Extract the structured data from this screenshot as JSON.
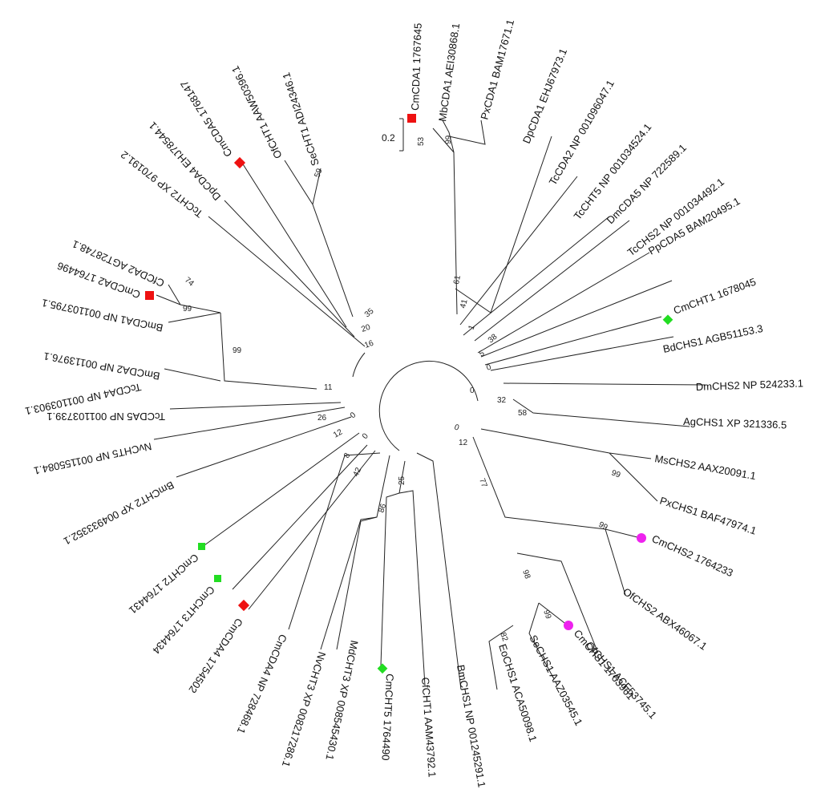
{
  "scale_bar": {
    "label": "0.2"
  },
  "colors": {
    "red": "#ee1111",
    "green": "#22dd22",
    "magenta": "#ee22ee",
    "line": "#222222"
  },
  "leaves": [
    {
      "label": "CmCDA1 1767645",
      "marker": "red-square"
    },
    {
      "label": "MbCDA1 AEI30868.1",
      "marker": ""
    },
    {
      "label": "PxCDA1 BAM17671.1",
      "marker": ""
    },
    {
      "label": "DpCDA1 EHJ67973.1",
      "marker": ""
    },
    {
      "label": "TcCDA2 NP 001096047.1",
      "marker": ""
    },
    {
      "label": "TcCHT5 NP 001034524.1",
      "marker": ""
    },
    {
      "label": "DmCDA5 NP 722589.1",
      "marker": ""
    },
    {
      "label": "TcCHS2 NP 001034492.1",
      "marker": ""
    },
    {
      "label": "PpCDA5 BAM20495.1",
      "marker": ""
    },
    {
      "label": "CmCHT1 1678045",
      "marker": "green-diamond"
    },
    {
      "label": "BdCHS1 AGB51153.3",
      "marker": ""
    },
    {
      "label": "DmCHS2 NP 524233.1",
      "marker": ""
    },
    {
      "label": "AgCHS1 XP 321336.5",
      "marker": ""
    },
    {
      "label": "MsCHS2 AAX20091.1",
      "marker": ""
    },
    {
      "label": "PxCHS1 BAF47974.1",
      "marker": ""
    },
    {
      "label": "CmCHS2 1764233",
      "marker": "magenta-circle"
    },
    {
      "label": "OfCHS2 ABX46067.1",
      "marker": ""
    },
    {
      "label": "OfCHS1 ACF53745.1",
      "marker": ""
    },
    {
      "label": "CmCHS1 1763961",
      "marker": "magenta-circle"
    },
    {
      "label": "SeCHS1 AAZ03545.1",
      "marker": ""
    },
    {
      "label": "EoCHS1 ACA50098.1",
      "marker": ""
    },
    {
      "label": "BmCHS1 NP 001245291.1",
      "marker": ""
    },
    {
      "label": "CfCHT1 AAM43792.1",
      "marker": ""
    },
    {
      "label": "CmCHT5 1764490",
      "marker": "green-diamond"
    },
    {
      "label": "MdCHT3 XP 008545430.1",
      "marker": ""
    },
    {
      "label": "NvCHT3 XP 008217286.1",
      "marker": ""
    },
    {
      "label": "CmCDA4 NP 728468.1",
      "marker": ""
    },
    {
      "label": "CmCDA4 1754502",
      "marker": "red-diamond"
    },
    {
      "label": "CmCHT3 1764434",
      "marker": "green-square"
    },
    {
      "label": "CmCHT2 1764431",
      "marker": "green-square"
    },
    {
      "label": "BmCHT2 XP 004933352.1",
      "marker": ""
    },
    {
      "label": "NvCHT5 NP 001155084.1",
      "marker": ""
    },
    {
      "label": "TcCDA4 NP 001103903.1",
      "marker": ""
    },
    {
      "label": "TcCDA5 NP 001103739.1",
      "marker": ""
    },
    {
      "label": "BmCDA2 NP 00113976.1",
      "marker": ""
    },
    {
      "label": "BmCDA1 NP 001103795.1",
      "marker": ""
    },
    {
      "label": "CmCDA2 1764496",
      "marker": "red-square"
    },
    {
      "label": "CfCDA2 AGT28748.1",
      "marker": ""
    },
    {
      "label": "TcCHT2 XP 970191.2",
      "marker": ""
    },
    {
      "label": "DpCDA4 EHJ78544.1",
      "marker": ""
    },
    {
      "label": "CmCDA5 1768147",
      "marker": "red-diamond"
    },
    {
      "label": "OfCHT1 AAW50396.1",
      "marker": ""
    },
    {
      "label": "SeCHT1 ADI24346.1",
      "marker": ""
    }
  ],
  "bootstrap_values": [
    "53",
    "99",
    "61",
    "41",
    "1",
    "38",
    "5",
    "0",
    "0",
    "32",
    "58",
    "0",
    "12",
    "99",
    "99",
    "77",
    "98",
    "99",
    "82",
    "25",
    "86",
    "42",
    "8",
    "0",
    "0",
    "12",
    "26",
    "11",
    "99",
    "99",
    "74",
    "16",
    "20",
    "35",
    "59"
  ]
}
